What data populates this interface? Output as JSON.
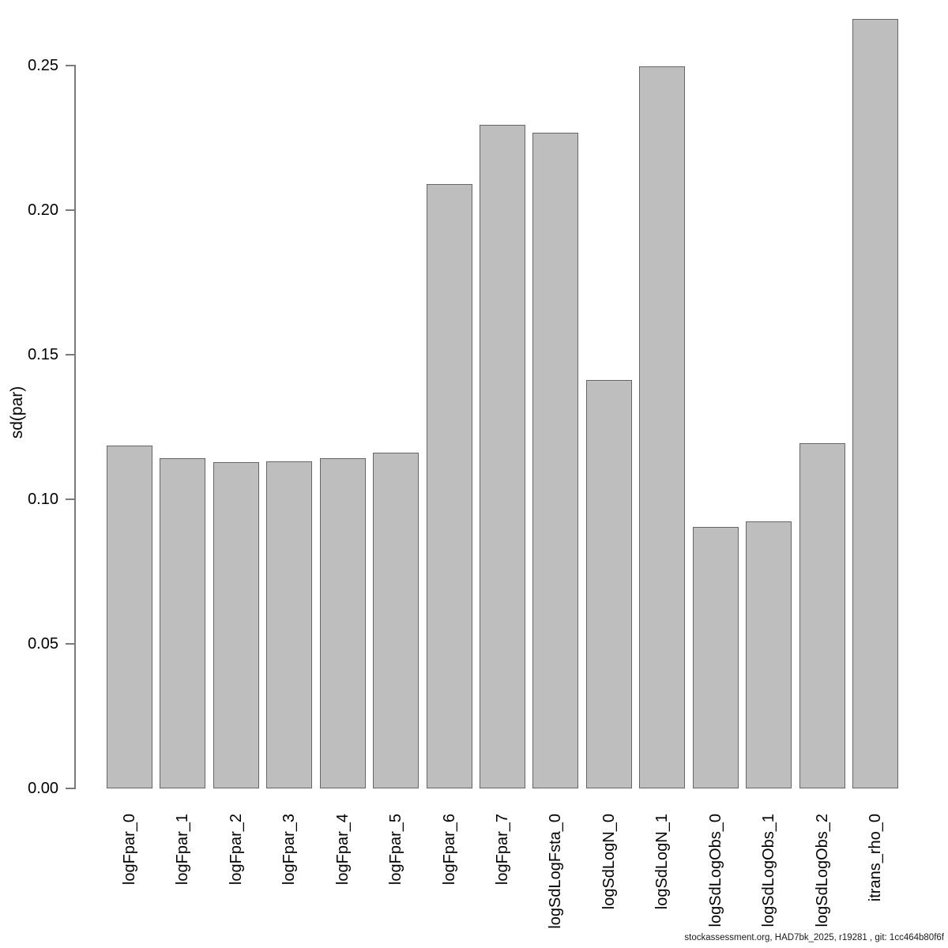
{
  "chart_data": {
    "type": "bar",
    "title": "",
    "xlabel": "",
    "ylabel": "sd(par)",
    "categories": [
      "logFpar_0",
      "logFpar_1",
      "logFpar_2",
      "logFpar_3",
      "logFpar_4",
      "logFpar_5",
      "logFpar_6",
      "logFpar_7",
      "logSdLogFsta_0",
      "logSdLogN_0",
      "logSdLogN_1",
      "logSdLogObs_0",
      "logSdLogObs_1",
      "logSdLogObs_2",
      "itrans_rho_0"
    ],
    "values": [
      0.1187,
      0.1142,
      0.1128,
      0.1131,
      0.1142,
      0.1161,
      0.2091,
      0.2295,
      0.2268,
      0.1413,
      0.2498,
      0.0904,
      0.0924,
      0.1194,
      0.2661
    ],
    "ylim": [
      0,
      0.267
    ],
    "yticks": [
      0.0,
      0.05,
      0.1,
      0.15,
      0.2,
      0.25
    ],
    "ytick_labels": [
      "0.00",
      "0.05",
      "0.10",
      "0.15",
      "0.20",
      "0.25"
    ],
    "grid": false,
    "legend": "none",
    "bar_fill_color": "#bebebe",
    "bar_border_color": "#666666",
    "axis_color": "#7a7a7a",
    "footer": "stockassessment.org, HAD7bk_2025, r19281 , git: 1cc464b80f6f"
  }
}
